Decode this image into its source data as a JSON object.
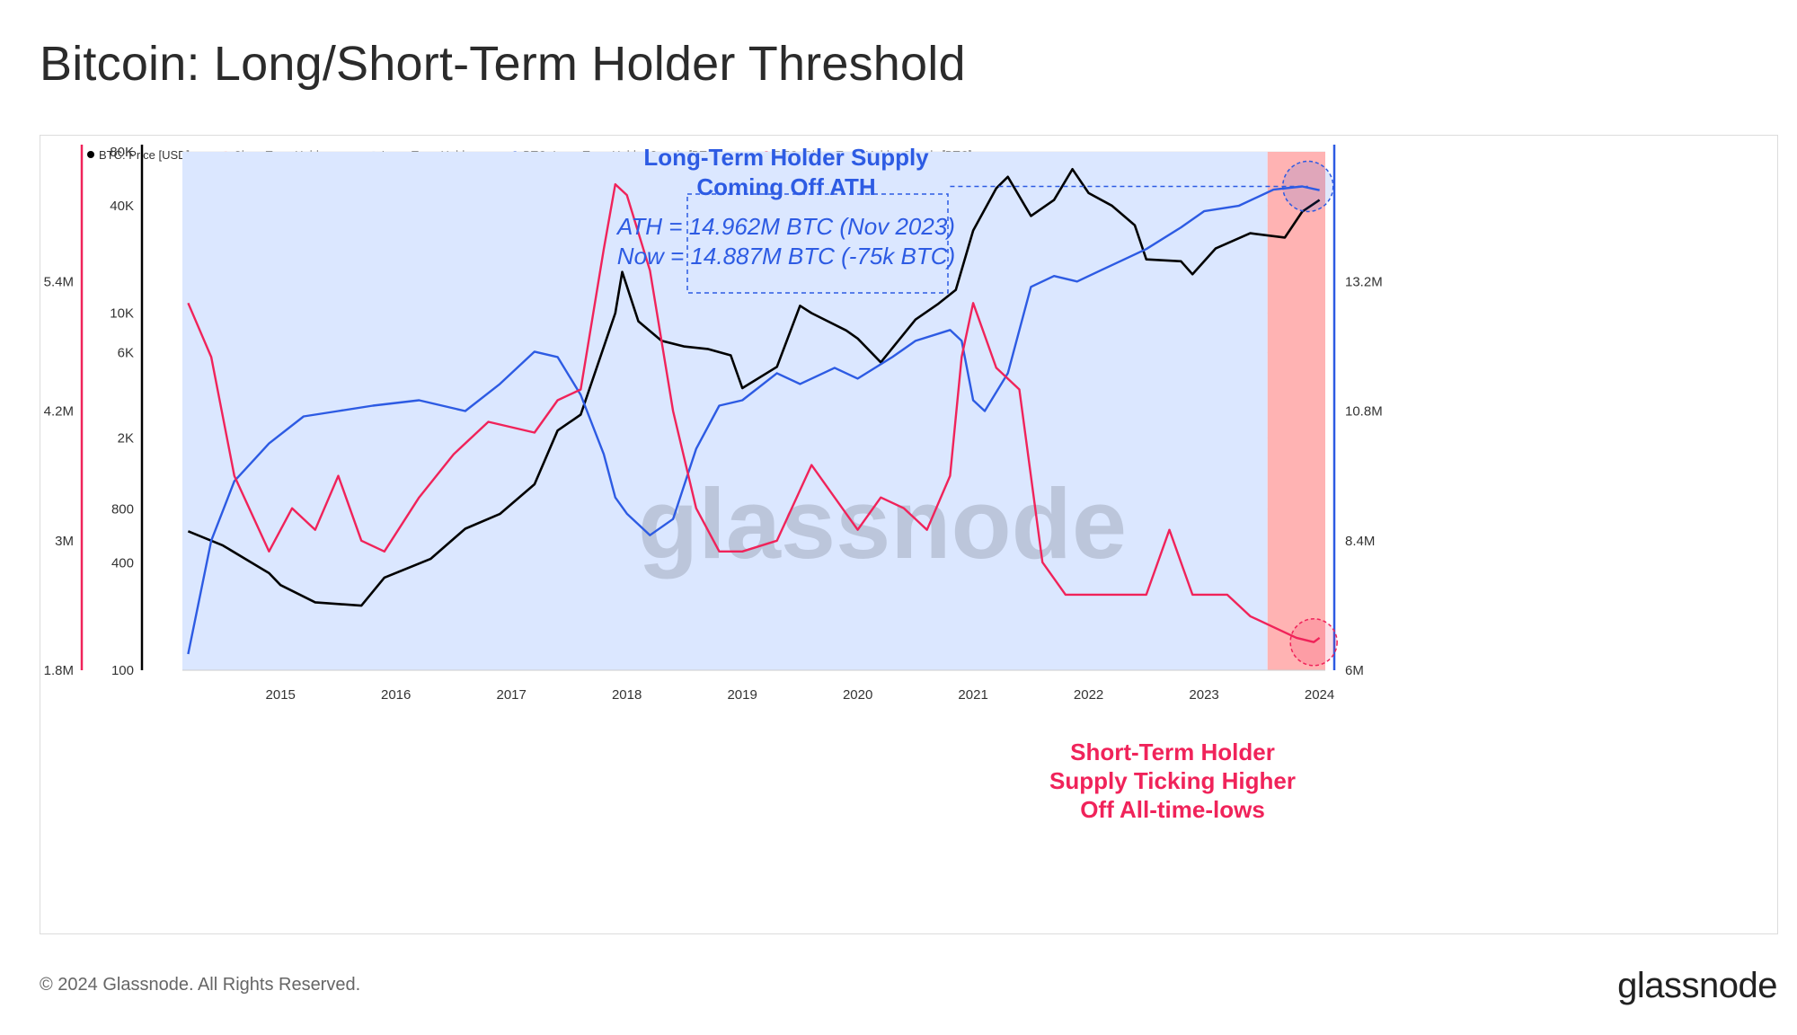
{
  "title": "Bitcoin: Long/Short-Term Holder Threshold",
  "footer": {
    "copyright": "© 2024 Glassnode. All Rights Reserved.",
    "brand": "glassnode"
  },
  "watermark": "glassnode",
  "colors": {
    "price": "#000000",
    "lth_supply": "#2d5be3",
    "sth_supply": "#f0235a",
    "lth_fill": "#dbe7ff",
    "sth_fill": "#ffb3b3"
  },
  "chart_data": {
    "type": "line",
    "x_axis": {
      "ticks": [
        "2015",
        "2016",
        "2017",
        "2018",
        "2019",
        "2020",
        "2021",
        "2022",
        "2023",
        "2024"
      ],
      "range": [
        "2014-03",
        "2024-01"
      ]
    },
    "y_axes": {
      "price": {
        "label": "BTC: Price [USD]",
        "scale": "log",
        "ticks": [
          "80K",
          "40K",
          "10K",
          "6K",
          "2K",
          "800",
          "400",
          "100"
        ],
        "range": [
          100,
          80000
        ]
      },
      "sth_supply": {
        "ticks": [
          "5.4M",
          "4.2M",
          "3M",
          "1.8M"
        ],
        "range": [
          1.8,
          6.6
        ],
        "unit": "M"
      },
      "lth_supply": {
        "ticks": [
          "13.2M",
          "10.8M",
          "8.4M",
          "6M"
        ],
        "range": [
          6,
          15.6
        ],
        "unit": "M"
      }
    },
    "legend": [
      {
        "label": "BTC: Price [USD]",
        "color": "#000000"
      },
      {
        "label": "Short-Term Holders",
        "color": "#ffd9d9"
      },
      {
        "label": "Long-Term Holders",
        "color": "#e8eeff"
      },
      {
        "label": "BTC: Long-Term Holder Supply [BTC]",
        "color": "#2d5be3"
      },
      {
        "label": "BTC: Short-Term Holder Supply [BTC]",
        "color": "#f0235a"
      }
    ],
    "series": [
      {
        "name": "BTC: Price [USD]",
        "axis": "price",
        "x": [
          2014.2,
          2014.5,
          2014.9,
          2015.0,
          2015.3,
          2015.7,
          2015.9,
          2016.3,
          2016.6,
          2016.9,
          2017.2,
          2017.4,
          2017.6,
          2017.9,
          2017.96,
          2018.1,
          2018.3,
          2018.5,
          2018.7,
          2018.9,
          2019.0,
          2019.3,
          2019.5,
          2019.6,
          2019.9,
          2020.0,
          2020.2,
          2020.5,
          2020.7,
          2020.85,
          2021.0,
          2021.2,
          2021.3,
          2021.5,
          2021.7,
          2021.86,
          2022.0,
          2022.2,
          2022.4,
          2022.5,
          2022.8,
          2022.9,
          2023.1,
          2023.4,
          2023.7,
          2023.85,
          2024.0
        ],
        "values": [
          600,
          500,
          350,
          300,
          240,
          230,
          330,
          420,
          620,
          750,
          1100,
          2200,
          2700,
          10000,
          17000,
          9000,
          7000,
          6500,
          6300,
          5800,
          3800,
          5000,
          11000,
          10000,
          8000,
          7200,
          5300,
          9200,
          11300,
          13500,
          29000,
          50000,
          58000,
          35000,
          43000,
          64000,
          47000,
          40000,
          31000,
          20000,
          19500,
          16500,
          23000,
          28000,
          26500,
          37000,
          43000
        ]
      },
      {
        "name": "BTC: Long-Term Holder Supply [BTC]",
        "axis": "lth_supply",
        "x": [
          2014.2,
          2014.4,
          2014.6,
          2014.9,
          2015.2,
          2015.5,
          2015.8,
          2016.2,
          2016.4,
          2016.6,
          2016.9,
          2017.2,
          2017.4,
          2017.6,
          2017.8,
          2017.9,
          2018.0,
          2018.2,
          2018.4,
          2018.6,
          2018.8,
          2019.0,
          2019.3,
          2019.5,
          2019.7,
          2019.8,
          2020.0,
          2020.3,
          2020.5,
          2020.8,
          2020.9,
          2021.0,
          2021.1,
          2021.3,
          2021.5,
          2021.7,
          2021.9,
          2022.1,
          2022.3,
          2022.5,
          2022.8,
          2023.0,
          2023.3,
          2023.6,
          2023.85,
          2024.0
        ],
        "values": [
          6.3,
          8.4,
          9.5,
          10.2,
          10.7,
          10.8,
          10.9,
          11.0,
          10.9,
          10.8,
          11.3,
          11.9,
          11.8,
          11.1,
          10.0,
          9.2,
          8.9,
          8.5,
          8.8,
          10.1,
          10.9,
          11.0,
          11.5,
          11.3,
          11.5,
          11.6,
          11.4,
          11.8,
          12.1,
          12.3,
          12.1,
          11.0,
          10.8,
          11.5,
          13.1,
          13.3,
          13.2,
          13.4,
          13.6,
          13.8,
          14.2,
          14.5,
          14.6,
          14.9,
          14.96,
          14.89
        ]
      },
      {
        "name": "BTC: Short-Term Holder Supply [BTC]",
        "axis": "sth_supply",
        "x": [
          2014.2,
          2014.4,
          2014.6,
          2014.9,
          2015.1,
          2015.3,
          2015.5,
          2015.7,
          2015.9,
          2016.2,
          2016.5,
          2016.8,
          2017.2,
          2017.4,
          2017.6,
          2017.8,
          2017.9,
          2018.0,
          2018.2,
          2018.4,
          2018.6,
          2018.8,
          2019.0,
          2019.3,
          2019.6,
          2019.8,
          2020.0,
          2020.2,
          2020.4,
          2020.6,
          2020.8,
          2020.9,
          2021.0,
          2021.2,
          2021.4,
          2021.6,
          2021.8,
          2021.9,
          2022.2,
          2022.5,
          2022.7,
          2022.9,
          2023.2,
          2023.4,
          2023.6,
          2023.8,
          2023.95,
          2024.0
        ],
        "values": [
          5.2,
          4.7,
          3.6,
          2.9,
          3.3,
          3.1,
          3.6,
          3.0,
          2.9,
          3.4,
          3.8,
          4.1,
          4.0,
          4.3,
          4.4,
          5.7,
          6.3,
          6.2,
          5.5,
          4.2,
          3.3,
          2.9,
          2.9,
          3.0,
          3.7,
          3.4,
          3.1,
          3.4,
          3.3,
          3.1,
          3.6,
          4.7,
          5.2,
          4.6,
          4.4,
          2.8,
          2.5,
          2.5,
          2.5,
          2.5,
          3.1,
          2.5,
          2.5,
          2.3,
          2.2,
          2.1,
          2.06,
          2.1
        ]
      }
    ],
    "annotations": {
      "lth_title": [
        "Long-Term Holder Supply",
        "Coming Off ATH"
      ],
      "lth_detail": [
        "ATH = 14.962M BTC (Nov 2023)",
        "Now = 14.887M BTC (-75k BTC)"
      ],
      "sth_title": [
        "Short-Term Holder",
        "Supply Ticking Higher",
        "Off All-time-lows"
      ]
    },
    "sth_regime_start": 2023.55,
    "grid": true,
    "legend_position": "top-left"
  }
}
